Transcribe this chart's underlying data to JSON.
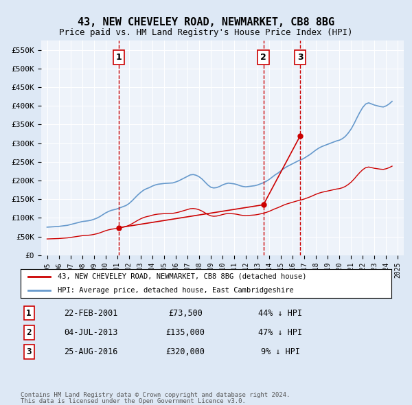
{
  "title": "43, NEW CHEVELEY ROAD, NEWMARKET, CB8 8BG",
  "subtitle": "Price paid vs. HM Land Registry's House Price Index (HPI)",
  "legend_line1": "43, NEW CHEVELEY ROAD, NEWMARKET, CB8 8BG (detached house)",
  "legend_line2": "HPI: Average price, detached house, East Cambridgeshire",
  "footer1": "Contains HM Land Registry data © Crown copyright and database right 2024.",
  "footer2": "This data is licensed under the Open Government Licence v3.0.",
  "sale_color": "#cc0000",
  "hpi_color": "#6699cc",
  "background_color": "#dde8f5",
  "plot_bg_color": "#eef3fa",
  "ylim": [
    0,
    575000
  ],
  "yticks": [
    0,
    50000,
    100000,
    150000,
    200000,
    250000,
    300000,
    350000,
    400000,
    450000,
    500000,
    550000
  ],
  "ytick_labels": [
    "£0",
    "£50K",
    "£100K",
    "£150K",
    "£200K",
    "£250K",
    "£300K",
    "£350K",
    "£400K",
    "£450K",
    "£500K",
    "£550K"
  ],
  "sales": [
    {
      "date_num": 2001.13,
      "price": 73500,
      "label": "1"
    },
    {
      "date_num": 2013.5,
      "price": 135000,
      "label": "2"
    },
    {
      "date_num": 2016.65,
      "price": 320000,
      "label": "3"
    }
  ],
  "sale_lines": [
    {
      "x": 2001.13,
      "label": "1"
    },
    {
      "x": 2013.5,
      "label": "2"
    },
    {
      "x": 2016.65,
      "label": "3"
    }
  ],
  "table_rows": [
    {
      "num": "1",
      "date": "22-FEB-2001",
      "price": "£73,500",
      "hpi": "44% ↓ HPI"
    },
    {
      "num": "2",
      "date": "04-JUL-2013",
      "price": "£135,000",
      "hpi": "47% ↓ HPI"
    },
    {
      "num": "3",
      "date": "25-AUG-2016",
      "price": "£320,000",
      "hpi": "9% ↓ HPI"
    }
  ],
  "xmin": 1994.5,
  "xmax": 2025.5,
  "hpi_data": {
    "years": [
      1995,
      1995.25,
      1995.5,
      1995.75,
      1996,
      1996.25,
      1996.5,
      1996.75,
      1997,
      1997.25,
      1997.5,
      1997.75,
      1998,
      1998.25,
      1998.5,
      1998.75,
      1999,
      1999.25,
      1999.5,
      1999.75,
      2000,
      2000.25,
      2000.5,
      2000.75,
      2001,
      2001.25,
      2001.5,
      2001.75,
      2002,
      2002.25,
      2002.5,
      2002.75,
      2003,
      2003.25,
      2003.5,
      2003.75,
      2004,
      2004.25,
      2004.5,
      2004.75,
      2005,
      2005.25,
      2005.5,
      2005.75,
      2006,
      2006.25,
      2006.5,
      2006.75,
      2007,
      2007.25,
      2007.5,
      2007.75,
      2008,
      2008.25,
      2008.5,
      2008.75,
      2009,
      2009.25,
      2009.5,
      2009.75,
      2010,
      2010.25,
      2010.5,
      2010.75,
      2011,
      2011.25,
      2011.5,
      2011.75,
      2012,
      2012.25,
      2012.5,
      2012.75,
      2013,
      2013.25,
      2013.5,
      2013.75,
      2014,
      2014.25,
      2014.5,
      2014.75,
      2015,
      2015.25,
      2015.5,
      2015.75,
      2016,
      2016.25,
      2016.5,
      2016.75,
      2017,
      2017.25,
      2017.5,
      2017.75,
      2018,
      2018.25,
      2018.5,
      2018.75,
      2019,
      2019.25,
      2019.5,
      2019.75,
      2020,
      2020.25,
      2020.5,
      2020.75,
      2021,
      2021.25,
      2021.5,
      2021.75,
      2022,
      2022.25,
      2022.5,
      2022.75,
      2023,
      2023.25,
      2023.5,
      2023.75,
      2024,
      2024.25,
      2024.5
    ],
    "values": [
      75000,
      75500,
      76000,
      76500,
      77000,
      78000,
      79000,
      80000,
      82000,
      84000,
      86000,
      88000,
      90000,
      91000,
      92000,
      93500,
      96000,
      99000,
      103000,
      108000,
      113000,
      117000,
      120000,
      122000,
      124000,
      127000,
      130000,
      133000,
      138000,
      145000,
      153000,
      161000,
      168000,
      174000,
      178000,
      181000,
      185000,
      188000,
      190000,
      191000,
      192000,
      192500,
      193000,
      193500,
      196000,
      199000,
      203000,
      207000,
      211000,
      215000,
      216000,
      214000,
      210000,
      204000,
      196000,
      188000,
      182000,
      180000,
      181000,
      184000,
      188000,
      191000,
      193000,
      192000,
      191000,
      189000,
      186000,
      184000,
      183000,
      184000,
      185000,
      186000,
      188000,
      191000,
      194000,
      198000,
      203000,
      209000,
      215000,
      220000,
      226000,
      232000,
      237000,
      241000,
      245000,
      249000,
      253000,
      256000,
      260000,
      265000,
      270000,
      276000,
      282000,
      287000,
      291000,
      294000,
      297000,
      300000,
      303000,
      306000,
      308000,
      312000,
      318000,
      327000,
      338000,
      352000,
      368000,
      383000,
      396000,
      405000,
      408000,
      405000,
      402000,
      400000,
      398000,
      397000,
      400000,
      405000,
      412000
    ]
  },
  "sale_hpi_data": {
    "years": [
      2001.13,
      2013.5,
      2016.65
    ],
    "values": [
      73500,
      135000,
      320000
    ]
  }
}
